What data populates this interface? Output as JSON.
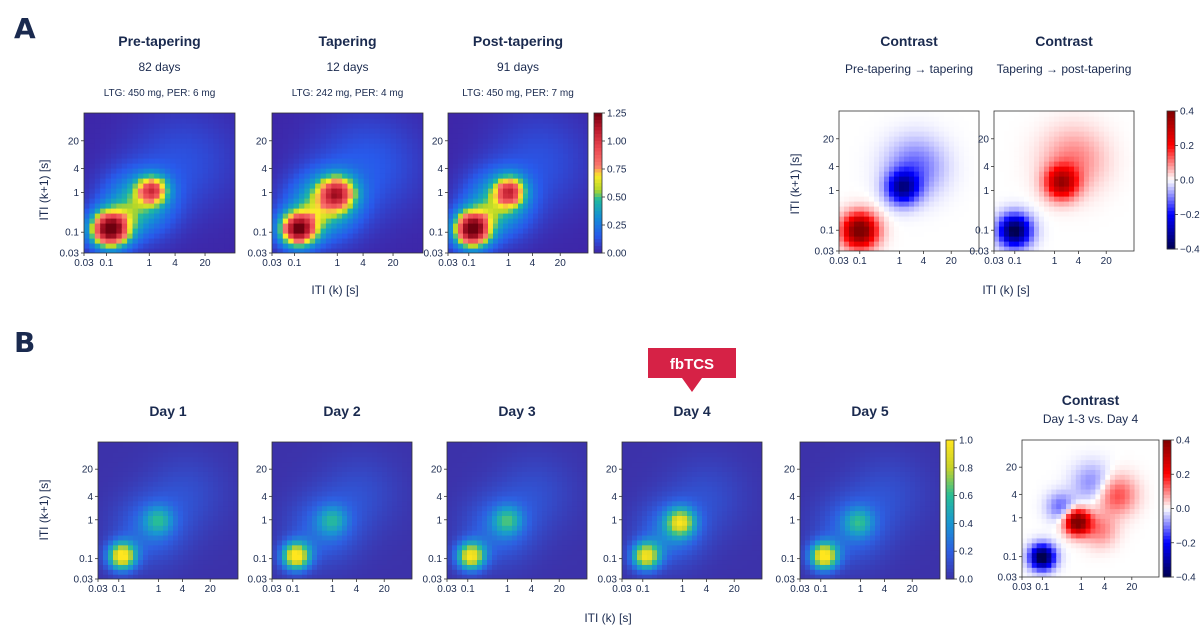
{
  "panel_a": {
    "letter": "A",
    "xlabel": "ITI (k) [s]",
    "ylabel": "ITI (k+1) [s]"
  },
  "panel_b": {
    "letter": "B",
    "xlabel": "ITI (k) [s]",
    "ylabel": "ITI (k+1) [s]",
    "marker_label": "fbTCS"
  },
  "colors": {
    "text": "#1a2a4f",
    "marker": "#d62246",
    "heat_low": "#3b2f9e",
    "heat_high": "#ffe14a"
  },
  "chart_data": [
    {
      "type": "heatmap",
      "id": "a-pre",
      "colormap": "jet",
      "title": "Pre-tapering",
      "subtitle": "82 days",
      "subtitle2": "LTG: 450 mg, PER: 6 mg",
      "xticks": [
        "0.03",
        "0.1",
        "1",
        "4",
        "20"
      ],
      "yticks": [
        "0.03",
        "0.1",
        "1",
        "4",
        "20"
      ],
      "vrange": [
        0,
        1.25
      ],
      "blobs": [
        {
          "x": 0.12,
          "y": 0.12,
          "amp": 1.25,
          "sigma": 0.32
        },
        {
          "x": 1.2,
          "y": 1.2,
          "amp": 0.7,
          "sigma": 0.25
        },
        {
          "x": 0.5,
          "y": 0.5,
          "amp": 0.45,
          "sigma": 0.55
        },
        {
          "x": 6,
          "y": 6,
          "amp": 0.12,
          "sigma": 0.9
        }
      ]
    },
    {
      "type": "heatmap",
      "id": "a-tap",
      "colormap": "jet",
      "title": "Tapering",
      "subtitle": "12 days",
      "subtitle2": "LTG: 242 mg, PER: 4 mg",
      "xticks": [
        "0.03",
        "0.1",
        "1",
        "4",
        "20"
      ],
      "yticks": [
        "0.03",
        "0.1",
        "1",
        "4",
        "20"
      ],
      "vrange": [
        0,
        1.25
      ],
      "blobs": [
        {
          "x": 0.12,
          "y": 0.12,
          "amp": 1.15,
          "sigma": 0.3
        },
        {
          "x": 1.0,
          "y": 1.0,
          "amp": 0.75,
          "sigma": 0.3
        },
        {
          "x": 0.45,
          "y": 0.45,
          "amp": 0.5,
          "sigma": 0.55
        },
        {
          "x": 5,
          "y": 5,
          "amp": 0.15,
          "sigma": 0.9
        }
      ]
    },
    {
      "type": "heatmap",
      "id": "a-post",
      "colormap": "jet",
      "title": "Post-tapering",
      "subtitle": "91 days",
      "subtitle2": "LTG: 450 mg, PER: 7 mg",
      "xticks": [
        "0.03",
        "0.1",
        "1",
        "4",
        "20"
      ],
      "yticks": [
        "0.03",
        "0.1",
        "1",
        "4",
        "20"
      ],
      "vrange": [
        0,
        1.25
      ],
      "colorbar_ticks": [
        "0.00",
        "0.25",
        "0.50",
        "0.75",
        "1.00",
        "1.25"
      ],
      "blobs": [
        {
          "x": 0.12,
          "y": 0.12,
          "amp": 1.25,
          "sigma": 0.32
        },
        {
          "x": 1.1,
          "y": 1.1,
          "amp": 0.72,
          "sigma": 0.27
        },
        {
          "x": 0.5,
          "y": 0.5,
          "amp": 0.45,
          "sigma": 0.55
        },
        {
          "x": 6,
          "y": 6,
          "amp": 0.12,
          "sigma": 0.9
        }
      ]
    },
    {
      "type": "heatmap",
      "id": "a-c1",
      "colormap": "seismic",
      "title": "Contrast",
      "subtitle": "Pre-tapering → tapering",
      "xticks": [
        "0.03",
        "0.1",
        "1",
        "4",
        "20"
      ],
      "yticks": [
        "0.03",
        "0.1",
        "1",
        "4",
        "20"
      ],
      "vrange": [
        -0.4,
        0.4
      ],
      "blobs": [
        {
          "x": 0.1,
          "y": 0.1,
          "amp": 0.45,
          "sigma": 0.3
        },
        {
          "x": 1.2,
          "y": 1.2,
          "amp": -0.3,
          "sigma": 0.28
        },
        {
          "x": 2.5,
          "y": 4,
          "amp": -0.12,
          "sigma": 0.5
        }
      ]
    },
    {
      "type": "heatmap",
      "id": "a-c2",
      "colormap": "seismic",
      "title": "Contrast",
      "subtitle": "Tapering → post-tapering",
      "xticks": [
        "0.03",
        "0.1",
        "1",
        "4",
        "20"
      ],
      "yticks": [
        "0.03",
        "0.1",
        "1",
        "4",
        "20"
      ],
      "vrange": [
        -0.4,
        0.4
      ],
      "colorbar_ticks": [
        "0.4",
        "0.2",
        "0.0",
        "−0.2",
        "−0.4"
      ],
      "blobs": [
        {
          "x": 0.1,
          "y": 0.1,
          "amp": -0.42,
          "sigma": 0.28
        },
        {
          "x": 1.5,
          "y": 1.6,
          "amp": 0.32,
          "sigma": 0.28
        },
        {
          "x": 3,
          "y": 6,
          "amp": 0.1,
          "sigma": 0.55
        }
      ]
    },
    {
      "type": "heatmap",
      "id": "b-d1",
      "colormap": "plasma",
      "title": "Day 1",
      "xticks": [
        "0.03",
        "0.1",
        "1",
        "4",
        "20"
      ],
      "yticks": [
        "0.03",
        "0.1",
        "1",
        "4",
        "20"
      ],
      "vrange": [
        0,
        1.0
      ],
      "blobs": [
        {
          "x": 0.12,
          "y": 0.12,
          "amp": 1.0,
          "sigma": 0.25
        },
        {
          "x": 1.0,
          "y": 1.0,
          "amp": 0.35,
          "sigma": 0.25
        },
        {
          "x": 0.6,
          "y": 0.6,
          "amp": 0.25,
          "sigma": 0.6
        },
        {
          "x": 5,
          "y": 5,
          "amp": 0.12,
          "sigma": 0.7
        }
      ]
    },
    {
      "type": "heatmap",
      "id": "b-d2",
      "colormap": "plasma",
      "title": "Day 2",
      "xticks": [
        "0.03",
        "0.1",
        "1",
        "4",
        "20"
      ],
      "yticks": [
        "0.03",
        "0.1",
        "1",
        "4",
        "20"
      ],
      "vrange": [
        0,
        1.0
      ],
      "blobs": [
        {
          "x": 0.12,
          "y": 0.12,
          "amp": 1.0,
          "sigma": 0.25
        },
        {
          "x": 1.0,
          "y": 1.0,
          "amp": 0.32,
          "sigma": 0.25
        },
        {
          "x": 0.6,
          "y": 0.6,
          "amp": 0.25,
          "sigma": 0.6
        },
        {
          "x": 5,
          "y": 5,
          "amp": 0.12,
          "sigma": 0.7
        }
      ]
    },
    {
      "type": "heatmap",
      "id": "b-d3",
      "colormap": "plasma",
      "title": "Day 3",
      "xticks": [
        "0.03",
        "0.1",
        "1",
        "4",
        "20"
      ],
      "yticks": [
        "0.03",
        "0.1",
        "1",
        "4",
        "20"
      ],
      "vrange": [
        0,
        1.0
      ],
      "blobs": [
        {
          "x": 0.12,
          "y": 0.12,
          "amp": 0.95,
          "sigma": 0.25
        },
        {
          "x": 1.0,
          "y": 1.0,
          "amp": 0.4,
          "sigma": 0.25
        },
        {
          "x": 0.6,
          "y": 0.6,
          "amp": 0.25,
          "sigma": 0.6
        },
        {
          "x": 5,
          "y": 5,
          "amp": 0.12,
          "sigma": 0.7
        }
      ]
    },
    {
      "type": "heatmap",
      "id": "b-d4",
      "colormap": "plasma",
      "title": "Day 4",
      "xticks": [
        "0.03",
        "0.1",
        "1",
        "4",
        "20"
      ],
      "yticks": [
        "0.03",
        "0.1",
        "1",
        "4",
        "20"
      ],
      "vrange": [
        0,
        1.0
      ],
      "blobs": [
        {
          "x": 0.12,
          "y": 0.12,
          "amp": 0.9,
          "sigma": 0.25
        },
        {
          "x": 0.9,
          "y": 0.9,
          "amp": 0.7,
          "sigma": 0.25
        },
        {
          "x": 0.5,
          "y": 0.5,
          "amp": 0.3,
          "sigma": 0.55
        },
        {
          "x": 4,
          "y": 4,
          "amp": 0.12,
          "sigma": 0.7
        }
      ]
    },
    {
      "type": "heatmap",
      "id": "b-d5",
      "colormap": "plasma",
      "title": "Day 5",
      "xticks": [
        "0.03",
        "0.1",
        "1",
        "4",
        "20"
      ],
      "yticks": [
        "0.03",
        "0.1",
        "1",
        "4",
        "20"
      ],
      "vrange": [
        0,
        1.0
      ],
      "colorbar_ticks": [
        "0.0",
        "0.2",
        "0.4",
        "0.6",
        "0.8",
        "1.0"
      ],
      "blobs": [
        {
          "x": 0.12,
          "y": 0.12,
          "amp": 1.0,
          "sigma": 0.25
        },
        {
          "x": 0.9,
          "y": 0.9,
          "amp": 0.35,
          "sigma": 0.25
        },
        {
          "x": 0.6,
          "y": 0.6,
          "amp": 0.25,
          "sigma": 0.6
        },
        {
          "x": 5,
          "y": 5,
          "amp": 0.12,
          "sigma": 0.7
        }
      ]
    },
    {
      "type": "heatmap",
      "id": "b-c",
      "colormap": "seismic",
      "title": "Contrast",
      "subtitle": "Day 1-3 vs. Day 4",
      "xticks": [
        "0.03",
        "0.1",
        "1",
        "4",
        "20"
      ],
      "yticks": [
        "0.03",
        "0.1",
        "1",
        "4",
        "20"
      ],
      "vrange": [
        -0.4,
        0.4
      ],
      "colorbar_ticks": [
        "0.4",
        "0.2",
        "0.0",
        "−0.2",
        "−0.4"
      ],
      "blobs": [
        {
          "x": 0.1,
          "y": 0.1,
          "amp": -0.45,
          "sigma": 0.22
        },
        {
          "x": 0.8,
          "y": 0.8,
          "amp": 0.45,
          "sigma": 0.22
        },
        {
          "x": 0.3,
          "y": 2,
          "amp": -0.12,
          "sigma": 0.25
        },
        {
          "x": 3,
          "y": 0.5,
          "amp": 0.1,
          "sigma": 0.3
        },
        {
          "x": 8,
          "y": 4,
          "amp": 0.15,
          "sigma": 0.35
        },
        {
          "x": 2,
          "y": 8,
          "amp": -0.1,
          "sigma": 0.35
        }
      ]
    }
  ]
}
